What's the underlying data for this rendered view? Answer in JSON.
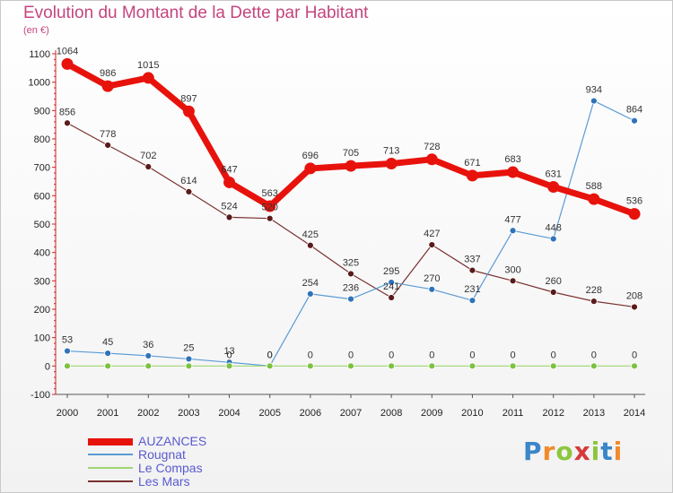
{
  "header": {
    "title": "Evolution du Montant de la Dette par Habitant",
    "unit": "(en €)"
  },
  "logo": {
    "letters": [
      "P",
      "r",
      "o",
      "x",
      "i",
      "t",
      "i"
    ],
    "colors": [
      "#3a86c8",
      "#f08a2c",
      "#8cc63f",
      "#d63a3a",
      "#8cc63f",
      "#3a86c8",
      "#f08a2c"
    ]
  },
  "chart_data": {
    "type": "line",
    "title": "Evolution du Montant de la Dette par Habitant",
    "ylabel": "(en €)",
    "xlabel": "",
    "x": [
      2000,
      2001,
      2002,
      2003,
      2004,
      2005,
      2006,
      2007,
      2008,
      2009,
      2010,
      2011,
      2012,
      2013,
      2014
    ],
    "ylim": [
      -100,
      1100
    ],
    "yticks": [
      -100,
      0,
      100,
      200,
      300,
      400,
      500,
      600,
      700,
      800,
      900,
      1000,
      1100
    ],
    "grid": false,
    "legend_position": "bottom-left",
    "series": [
      {
        "name": "AUZANCES",
        "color": "#e8120c",
        "style": "thick",
        "values": [
          1064,
          986,
          1015,
          897,
          647,
          563,
          696,
          705,
          713,
          728,
          671,
          683,
          631,
          588,
          536
        ],
        "labels": [
          "1064",
          "986",
          "1015",
          "897",
          "647",
          "563",
          "696",
          "705",
          "713",
          "728",
          "671",
          "683",
          "631",
          "588",
          "536"
        ]
      },
      {
        "name": "Rougnat",
        "color": "#5b9bd5",
        "marker": "#2f73b8",
        "style": "thin",
        "values": [
          53,
          45,
          36,
          25,
          13,
          0,
          254,
          236,
          295,
          270,
          231,
          477,
          448,
          934,
          864
        ],
        "labels": [
          "53",
          "45",
          "36",
          "25",
          "13",
          "0",
          "254",
          "236",
          "295",
          "270",
          "231",
          "477",
          "448",
          "934",
          "864"
        ]
      },
      {
        "name": "Le Compas",
        "color": "#9fd672",
        "marker": "#7cc242",
        "style": "thin",
        "values": [
          0,
          0,
          0,
          0,
          0,
          0,
          0,
          0,
          0,
          0,
          0,
          0,
          0,
          0,
          0
        ],
        "labels": [
          "",
          "",
          "",
          "",
          "0",
          "0",
          "0",
          "0",
          "0",
          "0",
          "0",
          "0",
          "0",
          "0",
          "0"
        ]
      },
      {
        "name": "Les Mars",
        "color": "#7a3030",
        "marker": "#5a1a1a",
        "style": "thin",
        "values": [
          856,
          778,
          702,
          614,
          524,
          520,
          425,
          325,
          241,
          427,
          337,
          300,
          260,
          228,
          208
        ],
        "labels": [
          "856",
          "778",
          "702",
          "614",
          "524",
          "520",
          "425",
          "325",
          "241",
          "427",
          "337",
          "300",
          "260",
          "228",
          "208"
        ]
      }
    ]
  }
}
